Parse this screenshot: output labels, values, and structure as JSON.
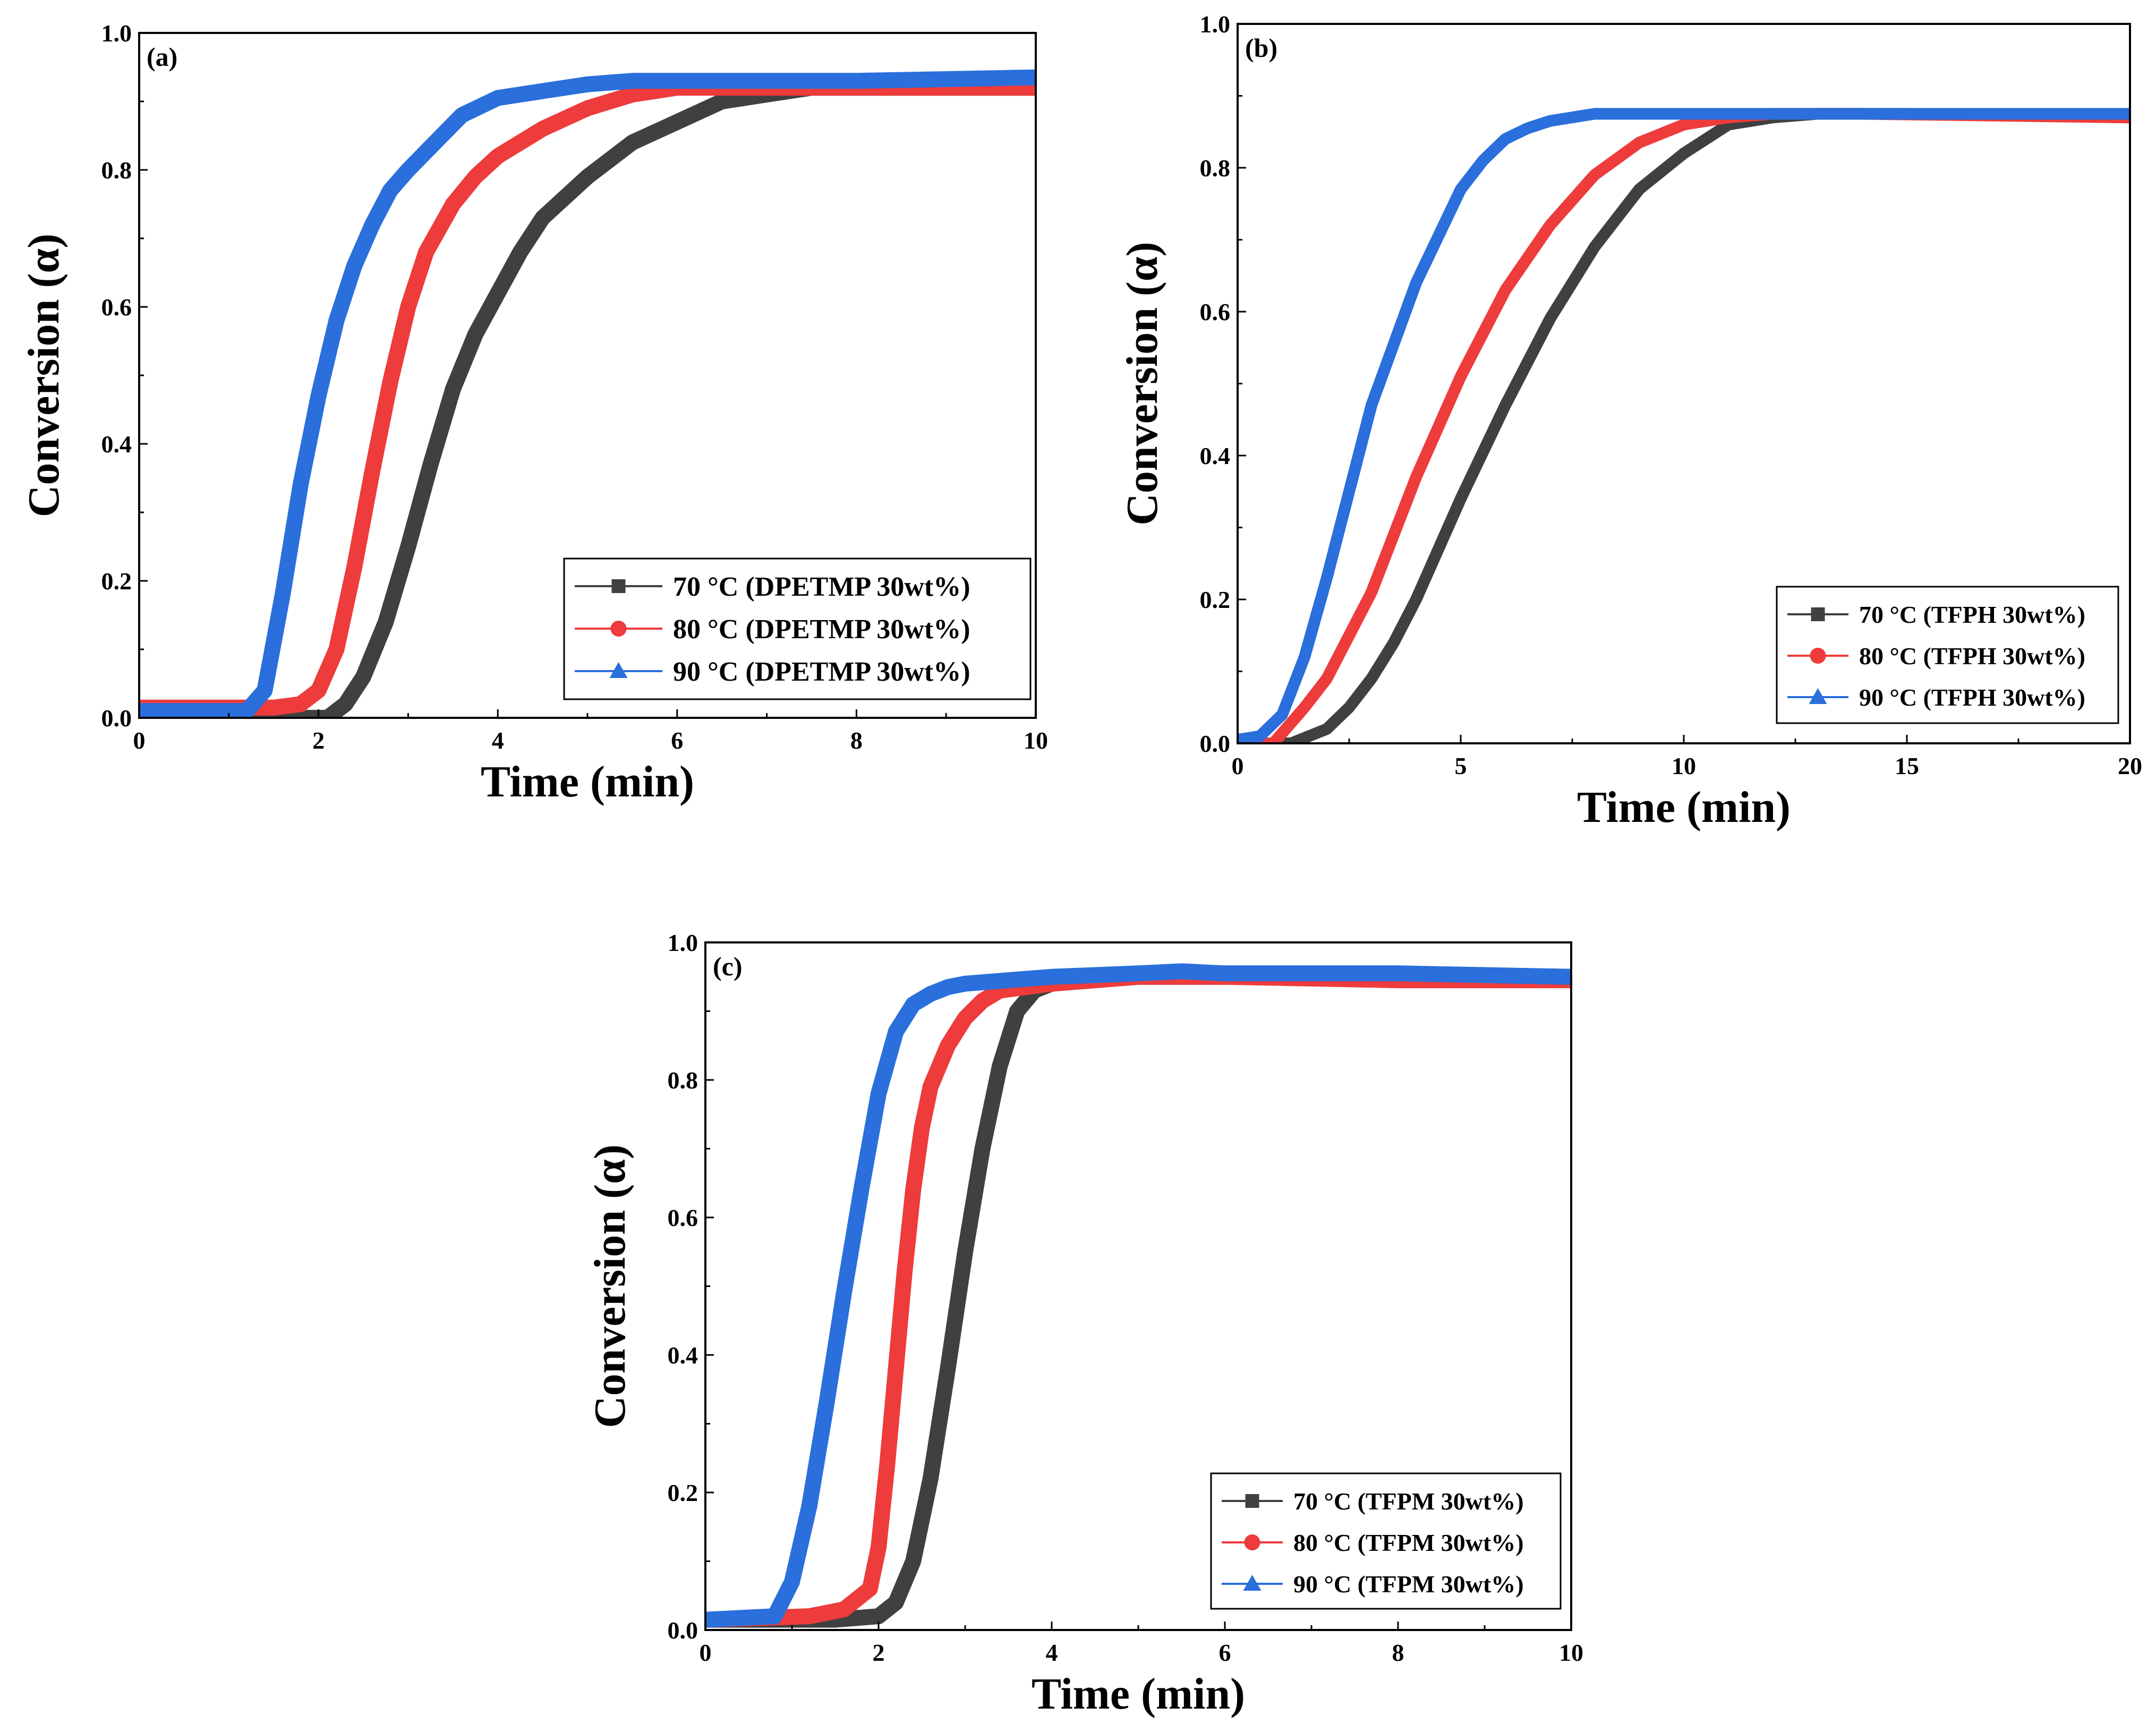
{
  "chart_data": [
    {
      "type": "line",
      "panel_label": "(a)",
      "xlabel": "Time (min)",
      "ylabel": "Conversion (α)",
      "xlim": [
        0,
        10
      ],
      "ylim": [
        0,
        1.0
      ],
      "x_ticks": [
        "0",
        "2",
        "4",
        "6",
        "8",
        "10"
      ],
      "y_ticks": [
        "0.0",
        "0.2",
        "0.4",
        "0.6",
        "0.8",
        "1.0"
      ],
      "legend_position": "bottom-right",
      "series": [
        {
          "name": "70 °C (DPETMP 30wt%)",
          "color": "#404040",
          "marker": "square",
          "x": [
            0,
            2.1,
            2.3,
            2.5,
            2.75,
            3.0,
            3.25,
            3.5,
            3.75,
            4.0,
            4.25,
            4.5,
            5.0,
            5.5,
            6.0,
            6.5,
            7.0,
            7.5,
            8.0,
            9.0,
            10.0
          ],
          "y": [
            0.0,
            0.0,
            0.02,
            0.06,
            0.14,
            0.25,
            0.37,
            0.48,
            0.56,
            0.62,
            0.68,
            0.73,
            0.79,
            0.84,
            0.87,
            0.9,
            0.91,
            0.92,
            0.92,
            0.92,
            0.92
          ]
        },
        {
          "name": "80 °C (DPETMP 30wt%)",
          "color": "#ee3b3b",
          "marker": "circle",
          "x": [
            0,
            1.5,
            1.8,
            2.0,
            2.2,
            2.4,
            2.6,
            2.8,
            3.0,
            3.2,
            3.5,
            3.75,
            4.0,
            4.5,
            5.0,
            5.5,
            6.0,
            7.0,
            8.0,
            10.0
          ],
          "y": [
            0.015,
            0.015,
            0.02,
            0.04,
            0.1,
            0.22,
            0.36,
            0.49,
            0.6,
            0.68,
            0.75,
            0.79,
            0.82,
            0.86,
            0.89,
            0.91,
            0.92,
            0.92,
            0.92,
            0.92
          ]
        },
        {
          "name": "90 °C (DPETMP 30wt%)",
          "color": "#2a6fdb",
          "marker": "triangle",
          "x": [
            0,
            1.2,
            1.4,
            1.6,
            1.8,
            2.0,
            2.2,
            2.4,
            2.6,
            2.8,
            3.0,
            3.3,
            3.6,
            4.0,
            4.5,
            5.0,
            5.5,
            6.0,
            8.0,
            10.0
          ],
          "y": [
            0.01,
            0.01,
            0.04,
            0.18,
            0.34,
            0.47,
            0.58,
            0.66,
            0.72,
            0.77,
            0.8,
            0.84,
            0.88,
            0.905,
            0.915,
            0.925,
            0.93,
            0.93,
            0.93,
            0.935
          ]
        }
      ]
    },
    {
      "type": "line",
      "panel_label": "(b)",
      "xlabel": "Time (min)",
      "ylabel": "Conversion (α)",
      "xlim": [
        0,
        20
      ],
      "ylim": [
        0,
        1.0
      ],
      "x_ticks": [
        "0",
        "5",
        "10",
        "15",
        "20"
      ],
      "y_ticks": [
        "0.0",
        "0.2",
        "0.4",
        "0.6",
        "0.8",
        "1.0"
      ],
      "legend_position": "bottom-right",
      "series": [
        {
          "name": "70 °C (TFPH 30wt%)",
          "color": "#404040",
          "marker": "square",
          "x": [
            0,
            1.2,
            2.0,
            2.5,
            3.0,
            3.5,
            4.0,
            5.0,
            6.0,
            7.0,
            8.0,
            9.0,
            10.0,
            11.0,
            12.0,
            13.0,
            15.0,
            20.0
          ],
          "y": [
            0.0,
            0.0,
            0.02,
            0.05,
            0.09,
            0.14,
            0.2,
            0.34,
            0.47,
            0.59,
            0.69,
            0.77,
            0.82,
            0.86,
            0.87,
            0.875,
            0.875,
            0.87
          ]
        },
        {
          "name": "80 °C (TFPH 30wt%)",
          "color": "#ee3b3b",
          "marker": "circle",
          "x": [
            0,
            0.8,
            1.5,
            2.0,
            3.0,
            4.0,
            5.0,
            6.0,
            7.0,
            8.0,
            9.0,
            10.0,
            11.0,
            12.0,
            14.0,
            20.0
          ],
          "y": [
            0.0,
            0.0,
            0.05,
            0.09,
            0.21,
            0.37,
            0.51,
            0.63,
            0.72,
            0.79,
            0.835,
            0.86,
            0.87,
            0.875,
            0.875,
            0.87
          ]
        },
        {
          "name": "90 °C (TFPH 30wt%)",
          "color": "#2a6fdb",
          "marker": "triangle",
          "x": [
            0,
            0.5,
            1.0,
            1.5,
            2.0,
            2.5,
            3.0,
            4.0,
            5.0,
            5.5,
            6.0,
            6.5,
            7.0,
            8.0,
            9.0,
            10.0,
            20.0
          ],
          "y": [
            0.005,
            0.01,
            0.04,
            0.12,
            0.23,
            0.35,
            0.47,
            0.64,
            0.77,
            0.81,
            0.84,
            0.855,
            0.865,
            0.875,
            0.875,
            0.875,
            0.875
          ]
        }
      ]
    },
    {
      "type": "line",
      "panel_label": "(c)",
      "xlabel": "Time (min)",
      "ylabel": "Conversion (α)",
      "xlim": [
        0,
        10
      ],
      "ylim": [
        0,
        1.0
      ],
      "x_ticks": [
        "0",
        "2",
        "4",
        "6",
        "8",
        "10"
      ],
      "y_ticks": [
        "0.0",
        "0.2",
        "0.4",
        "0.6",
        "0.8",
        "1.0"
      ],
      "legend_position": "bottom-right",
      "series": [
        {
          "name": "70 °C (TFPM 30wt%)",
          "color": "#404040",
          "marker": "square",
          "x": [
            0,
            1.5,
            2.0,
            2.2,
            2.4,
            2.6,
            2.8,
            3.0,
            3.2,
            3.4,
            3.6,
            3.8,
            4.0,
            4.5,
            5.0,
            6.0,
            8.0,
            10.0
          ],
          "y": [
            0.015,
            0.015,
            0.02,
            0.04,
            0.1,
            0.22,
            0.38,
            0.55,
            0.7,
            0.82,
            0.9,
            0.93,
            0.94,
            0.945,
            0.95,
            0.95,
            0.95,
            0.95
          ]
        },
        {
          "name": "80 °C (TFPM 30wt%)",
          "color": "#ee3b3b",
          "marker": "circle",
          "x": [
            0,
            1.2,
            1.6,
            1.9,
            2.0,
            2.1,
            2.2,
            2.3,
            2.4,
            2.5,
            2.6,
            2.8,
            3.0,
            3.2,
            3.4,
            4.0,
            5.0,
            6.0,
            8.0,
            10.0
          ],
          "y": [
            0.015,
            0.02,
            0.03,
            0.06,
            0.12,
            0.24,
            0.38,
            0.52,
            0.64,
            0.73,
            0.79,
            0.85,
            0.89,
            0.915,
            0.93,
            0.94,
            0.95,
            0.95,
            0.945,
            0.945
          ]
        },
        {
          "name": "90 °C (TFPM 30wt%)",
          "color": "#2a6fdb",
          "marker": "triangle",
          "x": [
            0,
            0.8,
            1.0,
            1.2,
            1.4,
            1.6,
            1.8,
            2.0,
            2.2,
            2.4,
            2.6,
            2.8,
            3.0,
            3.5,
            4.0,
            5.0,
            5.5,
            6.0,
            8.0,
            10.0
          ],
          "y": [
            0.015,
            0.02,
            0.07,
            0.18,
            0.33,
            0.49,
            0.64,
            0.78,
            0.87,
            0.91,
            0.925,
            0.935,
            0.94,
            0.945,
            0.95,
            0.955,
            0.958,
            0.955,
            0.955,
            0.95
          ]
        }
      ]
    }
  ]
}
